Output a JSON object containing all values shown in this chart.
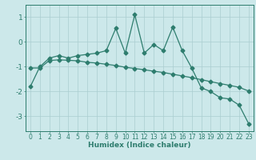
{
  "x": [
    0,
    1,
    2,
    3,
    4,
    5,
    6,
    7,
    8,
    9,
    10,
    11,
    12,
    13,
    14,
    15,
    16,
    17,
    18,
    19,
    20,
    21,
    22,
    23
  ],
  "y_main": [
    -1.8,
    -1.0,
    -0.65,
    -0.55,
    -0.65,
    -0.55,
    -0.5,
    -0.45,
    -0.35,
    0.55,
    -0.45,
    1.1,
    -0.45,
    -0.1,
    -0.35,
    0.6,
    -0.35,
    -1.05,
    -1.85,
    -2.0,
    -2.25,
    -2.3,
    -2.55,
    -3.3
  ],
  "y_trend": [
    -1.05,
    -1.05,
    -0.75,
    -0.72,
    -0.74,
    -0.76,
    -0.82,
    -0.85,
    -0.9,
    -0.95,
    -1.02,
    -1.07,
    -1.12,
    -1.18,
    -1.23,
    -1.3,
    -1.37,
    -1.44,
    -1.52,
    -1.6,
    -1.68,
    -1.75,
    -1.83,
    -1.98
  ],
  "line_color": "#2e7d6e",
  "bg_color": "#cce8ea",
  "grid_color": "#aacdd0",
  "xlabel": "Humidex (Indice chaleur)",
  "xlim": [
    -0.5,
    23.5
  ],
  "ylim": [
    -3.6,
    1.5
  ],
  "yticks": [
    -3,
    -2,
    -1,
    0,
    1
  ],
  "xticks": [
    0,
    1,
    2,
    3,
    4,
    5,
    6,
    7,
    8,
    9,
    10,
    11,
    12,
    13,
    14,
    15,
    16,
    17,
    18,
    19,
    20,
    21,
    22,
    23
  ],
  "markersize": 2.5,
  "linewidth": 0.9,
  "tick_fontsize": 5.5,
  "xlabel_fontsize": 6.5
}
